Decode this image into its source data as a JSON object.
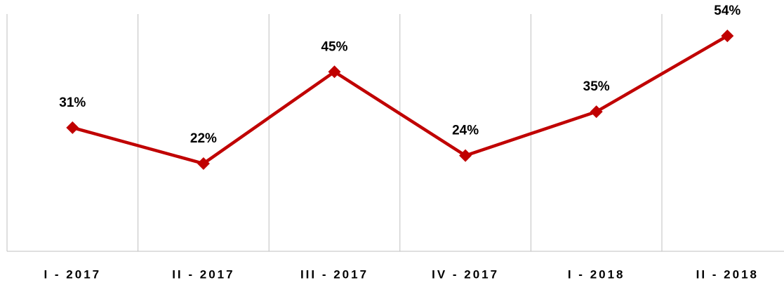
{
  "chart_data": {
    "type": "line",
    "categories": [
      "I - 2017",
      "II - 2017",
      "III - 2017",
      "IV - 2017",
      "I - 2018",
      "II - 2018"
    ],
    "values": [
      31,
      22,
      45,
      24,
      35,
      54
    ],
    "value_labels": [
      "31%",
      "22%",
      "45%",
      "24%",
      "35%",
      "54%"
    ],
    "color": "#c00000",
    "ylim": [
      0,
      63
    ],
    "grid": true
  }
}
